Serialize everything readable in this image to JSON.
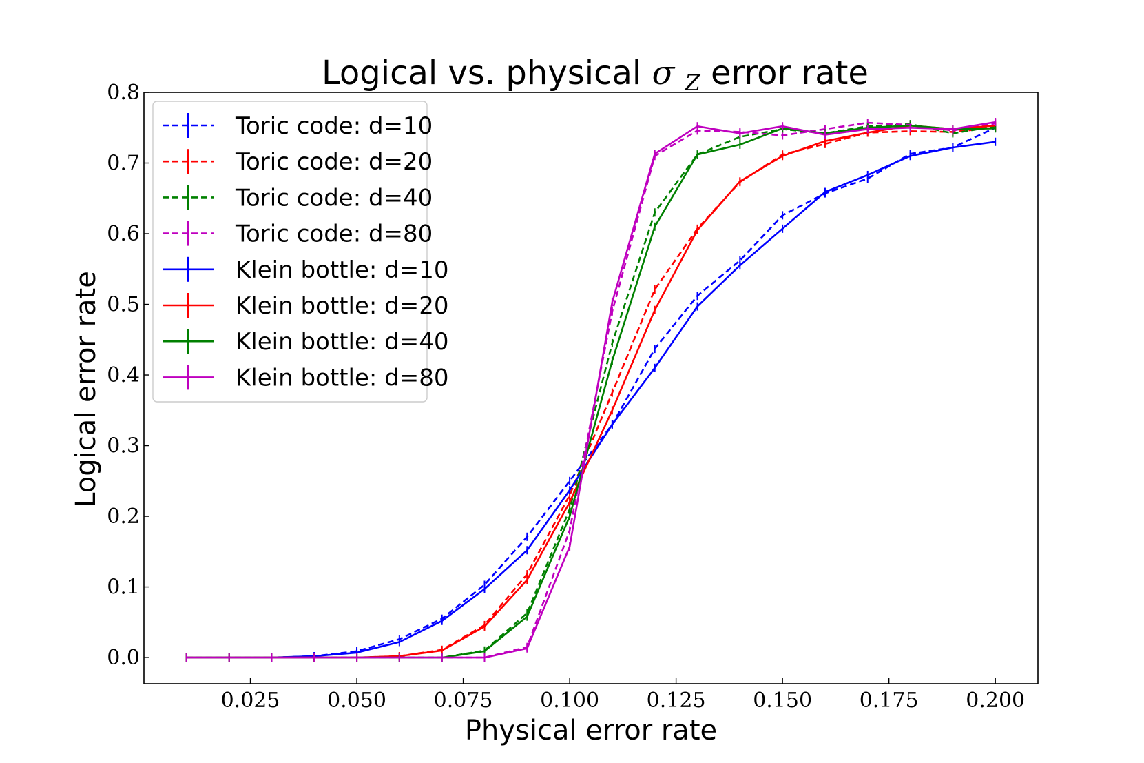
{
  "chart_data": {
    "type": "line",
    "title_main": "Logical vs. physical ",
    "title_symbol": "σ",
    "title_subscript": "Z",
    "title_tail": " error rate",
    "xlabel": "Physical error rate",
    "ylabel": "Logical error rate",
    "xlim": [
      0.0,
      0.21
    ],
    "ylim": [
      -0.037,
      0.8
    ],
    "x_ticks": [
      0.025,
      0.05,
      0.075,
      0.1,
      0.125,
      0.15,
      0.175,
      0.2
    ],
    "x_tick_labels": [
      "0.025",
      "0.050",
      "0.075",
      "0.100",
      "0.125",
      "0.150",
      "0.175",
      "0.200"
    ],
    "y_ticks": [
      0.0,
      0.1,
      0.2,
      0.3,
      0.4,
      0.5,
      0.6,
      0.7,
      0.8
    ],
    "y_tick_labels": [
      "0.0",
      "0.1",
      "0.2",
      "0.3",
      "0.4",
      "0.5",
      "0.6",
      "0.7",
      "0.8"
    ],
    "legend_position": "upper-left",
    "x": [
      0.01,
      0.02,
      0.03,
      0.04,
      0.05,
      0.06,
      0.07,
      0.08,
      0.09,
      0.1,
      0.11,
      0.12,
      0.13,
      0.14,
      0.15,
      0.16,
      0.17,
      0.18,
      0.19,
      0.2
    ],
    "series": [
      {
        "name": "Toric code: d=10",
        "color": "#0000ff",
        "dash": "dashed",
        "values": [
          0.0,
          0.0,
          0.0,
          0.002,
          0.009,
          0.026,
          0.055,
          0.103,
          0.171,
          0.25,
          0.33,
          0.437,
          0.512,
          0.562,
          0.626,
          0.657,
          0.678,
          0.713,
          0.722,
          0.75
        ]
      },
      {
        "name": "Toric code: d=20",
        "color": "#ff0000",
        "dash": "dashed",
        "values": [
          0.0,
          0.0,
          0.0,
          0.0,
          0.0,
          0.002,
          0.011,
          0.046,
          0.118,
          0.23,
          0.375,
          0.521,
          0.607,
          0.673,
          0.712,
          0.727,
          0.743,
          0.745,
          0.744,
          0.75
        ]
      },
      {
        "name": "Toric code: d=40",
        "color": "#008000",
        "dash": "dashed",
        "values": [
          0.0,
          0.0,
          0.0,
          0.0,
          0.0,
          0.0,
          0.0,
          0.01,
          0.063,
          0.21,
          0.445,
          0.63,
          0.712,
          0.737,
          0.748,
          0.742,
          0.752,
          0.755,
          0.742,
          0.752
        ]
      },
      {
        "name": "Toric code: d=80",
        "color": "#bf00bf",
        "dash": "dashed",
        "values": [
          0.0,
          0.0,
          0.0,
          0.0,
          0.0,
          0.0,
          0.0,
          0.0,
          0.015,
          0.18,
          0.49,
          0.71,
          0.746,
          0.744,
          0.739,
          0.748,
          0.757,
          0.754,
          0.746,
          0.756
        ]
      },
      {
        "name": "Klein bottle: d=10",
        "color": "#0000ff",
        "dash": "solid",
        "values": [
          0.0,
          0.0,
          0.0,
          0.002,
          0.007,
          0.022,
          0.052,
          0.097,
          0.152,
          0.237,
          0.33,
          0.41,
          0.497,
          0.555,
          0.607,
          0.659,
          0.683,
          0.71,
          0.722,
          0.73
        ]
      },
      {
        "name": "Klein bottle: d=20",
        "color": "#ff0000",
        "dash": "solid",
        "values": [
          0.0,
          0.0,
          0.0,
          0.0,
          0.0,
          0.002,
          0.01,
          0.044,
          0.11,
          0.22,
          0.35,
          0.492,
          0.605,
          0.674,
          0.71,
          0.731,
          0.743,
          0.753,
          0.748,
          0.753
        ]
      },
      {
        "name": "Klein bottle: d=40",
        "color": "#008000",
        "dash": "solid",
        "values": [
          0.0,
          0.0,
          0.0,
          0.0,
          0.0,
          0.0,
          0.0,
          0.009,
          0.058,
          0.2,
          0.42,
          0.61,
          0.712,
          0.726,
          0.749,
          0.742,
          0.75,
          0.753,
          0.748,
          0.749
        ]
      },
      {
        "name": "Klein bottle: d=80",
        "color": "#bf00bf",
        "dash": "solid",
        "values": [
          0.0,
          0.0,
          0.0,
          0.0,
          0.0,
          0.0,
          0.0,
          0.0,
          0.013,
          0.157,
          0.503,
          0.713,
          0.752,
          0.742,
          0.752,
          0.74,
          0.748,
          0.75,
          0.748,
          0.758
        ]
      }
    ]
  }
}
